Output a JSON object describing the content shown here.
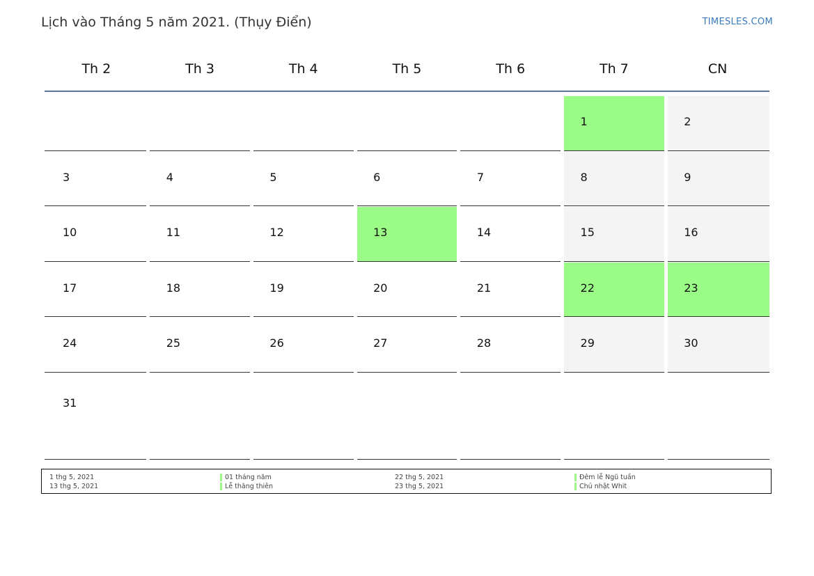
{
  "title": "Lịch vào Tháng 5 năm 2021. (Thụy Điển)",
  "brand": "TIMESLES.COM",
  "colors": {
    "holiday": "#9afb86",
    "weekend": "#f4f4f4",
    "header_rule": "#5b7392",
    "brand": "#3a7bbf"
  },
  "weekdays": [
    "Th 2",
    "Th 3",
    "Th 4",
    "Th 5",
    "Th 6",
    "Th 7",
    "CN"
  ],
  "weeks": [
    [
      {
        "day": "",
        "type": "empty"
      },
      {
        "day": "",
        "type": "empty"
      },
      {
        "day": "",
        "type": "empty"
      },
      {
        "day": "",
        "type": "empty"
      },
      {
        "day": "",
        "type": "empty"
      },
      {
        "day": "1",
        "type": "holiday"
      },
      {
        "day": "2",
        "type": "weekend"
      }
    ],
    [
      {
        "day": "3",
        "type": "normal"
      },
      {
        "day": "4",
        "type": "normal"
      },
      {
        "day": "5",
        "type": "normal"
      },
      {
        "day": "6",
        "type": "normal"
      },
      {
        "day": "7",
        "type": "normal"
      },
      {
        "day": "8",
        "type": "weekend"
      },
      {
        "day": "9",
        "type": "weekend"
      }
    ],
    [
      {
        "day": "10",
        "type": "normal"
      },
      {
        "day": "11",
        "type": "normal"
      },
      {
        "day": "12",
        "type": "normal"
      },
      {
        "day": "13",
        "type": "holiday"
      },
      {
        "day": "14",
        "type": "normal"
      },
      {
        "day": "15",
        "type": "weekend"
      },
      {
        "day": "16",
        "type": "weekend"
      }
    ],
    [
      {
        "day": "17",
        "type": "normal"
      },
      {
        "day": "18",
        "type": "normal"
      },
      {
        "day": "19",
        "type": "normal"
      },
      {
        "day": "20",
        "type": "normal"
      },
      {
        "day": "21",
        "type": "normal"
      },
      {
        "day": "22",
        "type": "holiday"
      },
      {
        "day": "23",
        "type": "holiday"
      }
    ],
    [
      {
        "day": "24",
        "type": "normal"
      },
      {
        "day": "25",
        "type": "normal"
      },
      {
        "day": "26",
        "type": "normal"
      },
      {
        "day": "27",
        "type": "normal"
      },
      {
        "day": "28",
        "type": "normal"
      },
      {
        "day": "29",
        "type": "weekend"
      },
      {
        "day": "30",
        "type": "weekend"
      }
    ],
    [
      {
        "day": "31",
        "type": "normal"
      },
      {
        "day": "",
        "type": "empty"
      },
      {
        "day": "",
        "type": "empty"
      },
      {
        "day": "",
        "type": "empty"
      },
      {
        "day": "",
        "type": "empty"
      },
      {
        "day": "",
        "type": "empty"
      },
      {
        "day": "",
        "type": "empty"
      }
    ]
  ],
  "legend": {
    "group1": {
      "dates": [
        "1 thg 5, 2021",
        "13 thg 5, 2021"
      ],
      "names": [
        "01 tháng năm",
        "Lễ thăng thiên"
      ]
    },
    "group2": {
      "dates": [
        "22 thg 5, 2021",
        "23 thg 5, 2021"
      ],
      "names": [
        "Đêm lễ Ngũ tuần",
        "Chủ nhật Whit"
      ]
    }
  }
}
